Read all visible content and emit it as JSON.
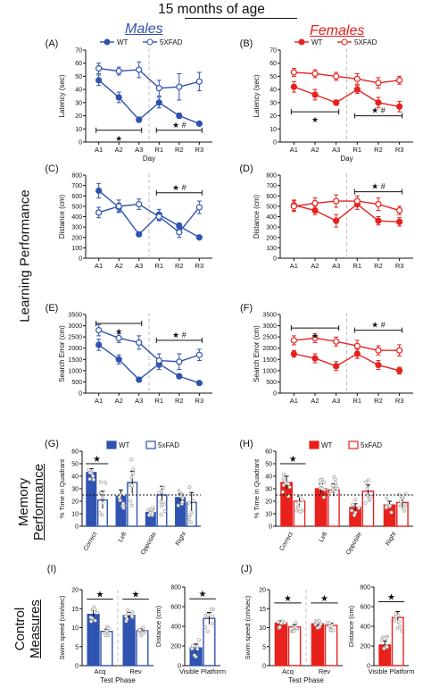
{
  "figure": {
    "title": "15 months of age",
    "males_label": "Males",
    "females_label": "Females",
    "side_labels": {
      "learning": "Learning Performance",
      "memory": [
        "Memory",
        "Performance"
      ],
      "control": [
        "Control",
        "Measures"
      ]
    }
  },
  "colors": {
    "males": "#2f53b0",
    "females": "#e8211d",
    "scatter": "#aaaaaa",
    "divider": "#c0c0c0"
  },
  "chart_data": [
    {
      "id": "A",
      "label": "(A)",
      "type": "line",
      "sex": "males",
      "categories": [
        "A1",
        "A2",
        "A3",
        "R1",
        "R2",
        "R3"
      ],
      "xlabel": "Day",
      "ylabel": "Latency (sec)",
      "ylim": [
        0,
        70
      ],
      "yticks": [
        0,
        10,
        20,
        30,
        40,
        50,
        60,
        70
      ],
      "legend": [
        "WT",
        "5XFAD"
      ],
      "series": [
        {
          "name": "WT",
          "values": [
            47,
            34,
            17,
            30,
            20,
            14
          ],
          "err": [
            4,
            4,
            2,
            4,
            2,
            1
          ],
          "filled": true
        },
        {
          "name": "5XFAD",
          "values": [
            56,
            54,
            55,
            41,
            42,
            46
          ],
          "err": [
            4,
            3,
            6,
            6,
            10,
            7
          ],
          "filled": false
        }
      ],
      "annotations": [
        {
          "text": "★",
          "from": "A1",
          "to": "A3",
          "y": 9
        },
        {
          "text": "★ #",
          "from": "R1",
          "to": "R3",
          "y": 9
        }
      ]
    },
    {
      "id": "B",
      "label": "(B)",
      "type": "line",
      "sex": "females",
      "categories": [
        "A1",
        "A2",
        "A3",
        "R1",
        "R2",
        "R3"
      ],
      "xlabel": "Day",
      "ylabel": "Latency (sec)",
      "ylim": [
        0,
        70
      ],
      "yticks": [
        0,
        10,
        20,
        30,
        40,
        50,
        60,
        70
      ],
      "legend": [
        "WT",
        "5XFAD"
      ],
      "series": [
        {
          "name": "WT",
          "values": [
            42,
            36,
            30,
            40,
            30,
            27
          ],
          "err": [
            4,
            4,
            2,
            3,
            4,
            4
          ],
          "filled": true
        },
        {
          "name": "5XFAD",
          "values": [
            53,
            52,
            50,
            48,
            45,
            47
          ],
          "err": [
            3,
            3,
            3,
            4,
            4,
            3
          ],
          "filled": false
        }
      ],
      "annotations": [
        {
          "text": "★",
          "from": "A1",
          "to": "A3",
          "y": 23
        },
        {
          "text": "★ #",
          "from": "R1",
          "to": "R3",
          "y": 20
        }
      ]
    },
    {
      "id": "C",
      "label": "(C)",
      "type": "line",
      "sex": "males",
      "categories": [
        "A1",
        "A2",
        "A3",
        "R1",
        "R2",
        "R3"
      ],
      "xlabel": "",
      "ylabel": "Distance (cm)",
      "ylim": [
        0,
        800
      ],
      "yticks": [
        0,
        100,
        200,
        300,
        400,
        500,
        600,
        700,
        800
      ],
      "series": [
        {
          "name": "WT",
          "values": [
            650,
            490,
            230,
            420,
            310,
            200
          ],
          "err": [
            70,
            40,
            20,
            50,
            30,
            20
          ],
          "filled": true
        },
        {
          "name": "5XFAD",
          "values": [
            440,
            500,
            520,
            400,
            250,
            490
          ],
          "err": [
            50,
            60,
            50,
            40,
            50,
            60
          ],
          "filled": false
        }
      ],
      "annotations": [
        {
          "text": "★ #",
          "from": "R1",
          "to": "R3",
          "y": 630
        }
      ]
    },
    {
      "id": "D",
      "label": "(D)",
      "type": "line",
      "sex": "females",
      "categories": [
        "A1",
        "A2",
        "A3",
        "R1",
        "R2",
        "R3"
      ],
      "xlabel": "",
      "ylabel": "Distance (cm)",
      "ylim": [
        0,
        800
      ],
      "yticks": [
        0,
        100,
        200,
        300,
        400,
        500,
        600,
        700,
        800
      ],
      "series": [
        {
          "name": "WT",
          "values": [
            510,
            460,
            360,
            520,
            360,
            350
          ],
          "err": [
            50,
            40,
            60,
            50,
            40,
            40
          ],
          "filled": true
        },
        {
          "name": "5XFAD",
          "values": [
            500,
            530,
            550,
            550,
            520,
            460
          ],
          "err": [
            50,
            50,
            60,
            50,
            60,
            40
          ],
          "filled": false
        }
      ],
      "annotations": [
        {
          "text": "★ #",
          "from": "R1",
          "to": "R3",
          "y": 640
        }
      ]
    },
    {
      "id": "E",
      "label": "(E)",
      "type": "line",
      "sex": "males",
      "categories": [
        "A1",
        "A2",
        "A3",
        "R1",
        "R2",
        "R3"
      ],
      "xlabel": "",
      "ylabel": "Search Error (cm)",
      "ylim": [
        0,
        3500
      ],
      "yticks": [
        0,
        500,
        1000,
        1500,
        2000,
        2500,
        3000,
        3500
      ],
      "series": [
        {
          "name": "WT",
          "values": [
            2150,
            1500,
            600,
            1300,
            750,
            450
          ],
          "err": [
            250,
            200,
            100,
            250,
            100,
            50
          ],
          "filled": true
        },
        {
          "name": "5XFAD",
          "values": [
            2800,
            2450,
            2250,
            1450,
            1400,
            1700
          ],
          "err": [
            250,
            200,
            300,
            300,
            350,
            250
          ],
          "filled": false
        }
      ],
      "annotations": [
        {
          "text": "★",
          "from": "A1",
          "to": "A3",
          "y": 3100
        },
        {
          "text": "★ #",
          "from": "R1",
          "to": "R3",
          "y": 2350
        }
      ]
    },
    {
      "id": "F",
      "label": "(F)",
      "type": "line",
      "sex": "females",
      "categories": [
        "A1",
        "A2",
        "A3",
        "R1",
        "R2",
        "R3"
      ],
      "xlabel": "",
      "ylabel": "Search Error (cm)",
      "ylim": [
        0,
        3500
      ],
      "yticks": [
        0,
        500,
        1000,
        1500,
        2000,
        2500,
        3000,
        3500
      ],
      "series": [
        {
          "name": "WT",
          "values": [
            1750,
            1550,
            1200,
            1750,
            1250,
            1000
          ],
          "err": [
            150,
            200,
            200,
            200,
            200,
            150
          ],
          "filled": true
        },
        {
          "name": "5XFAD",
          "values": [
            2350,
            2450,
            2300,
            2100,
            1900,
            1900
          ],
          "err": [
            200,
            200,
            200,
            250,
            200,
            250
          ],
          "filled": false
        }
      ],
      "annotations": [
        {
          "text": "★",
          "from": "A1",
          "to": "A3",
          "y": 2900
        },
        {
          "text": "★ #",
          "from": "R1",
          "to": "R3",
          "y": 2800
        }
      ]
    },
    {
      "id": "G",
      "label": "(G)",
      "type": "bar",
      "sex": "males",
      "categories": [
        "Correct",
        "Left",
        "Opposite",
        "Right"
      ],
      "xlabel": "",
      "ylabel": "% Time in Quadrant",
      "ylim": [
        0,
        60
      ],
      "yticks": [
        0,
        10,
        20,
        30,
        40,
        50,
        60
      ],
      "chance_line": 25,
      "legend": [
        "WT",
        "5xFAD"
      ],
      "series": [
        {
          "name": "WT",
          "values": [
            43,
            24,
            11,
            23
          ],
          "err": [
            3,
            5,
            2,
            3
          ],
          "filled": true
        },
        {
          "name": "5xFAD",
          "values": [
            21,
            35,
            25,
            19
          ],
          "err": [
            7,
            9,
            7,
            8
          ],
          "filled": false
        }
      ],
      "annotations": [
        {
          "text": "★",
          "from": "Correct",
          "to": "Correct",
          "y": 50
        }
      ]
    },
    {
      "id": "H",
      "label": "(H)",
      "type": "bar",
      "sex": "females",
      "categories": [
        "Correct",
        "Left",
        "Opposite",
        "Right"
      ],
      "xlabel": "",
      "ylabel": "% Time in Quadrant",
      "ylim": [
        0,
        60
      ],
      "yticks": [
        0,
        10,
        20,
        30,
        40,
        50,
        60
      ],
      "chance_line": 25,
      "legend": [
        "WT",
        "5xFAD"
      ],
      "series": [
        {
          "name": "WT",
          "values": [
            35,
            30,
            15,
            17
          ],
          "err": [
            5,
            4,
            3,
            3
          ],
          "filled": true
        },
        {
          "name": "5xFAD",
          "values": [
            20,
            29,
            28,
            19
          ],
          "err": [
            4,
            5,
            5,
            4
          ],
          "filled": false
        }
      ],
      "annotations": [
        {
          "text": "★",
          "from": "Correct",
          "to": "Correct",
          "y": 50
        }
      ]
    },
    {
      "id": "I",
      "label": "(I)",
      "type": "bar",
      "sex": "males",
      "panels": [
        {
          "categories": [
            "Acq",
            "Rev"
          ],
          "xlabel": "Test Phase",
          "ylabel": "Swim speed (cm/sec)",
          "ylim": [
            0,
            20
          ],
          "yticks": [
            0,
            5,
            10,
            15,
            20
          ],
          "series": [
            {
              "name": "WT",
              "values": [
                13.5,
                13.2
              ],
              "err": [
                1.0,
                0.8
              ],
              "filled": true
            },
            {
              "name": "5xFAD",
              "values": [
                9.0,
                9.2
              ],
              "err": [
                0.6,
                0.6
              ],
              "filled": false
            }
          ],
          "annotations": [
            {
              "text": "★",
              "from": "Acq",
              "to": "Acq",
              "y": 17.5
            },
            {
              "text": "★",
              "from": "Rev",
              "to": "Rev",
              "y": 17.5
            }
          ]
        },
        {
          "categories": [
            "Visible Platform"
          ],
          "xlabel": "",
          "ylabel": "Distance (cm)",
          "ylim": [
            0,
            800
          ],
          "yticks": [
            0,
            200,
            400,
            600,
            800
          ],
          "series": [
            {
              "name": "WT",
              "values": [
                180
              ],
              "err": [
                40
              ],
              "filled": true
            },
            {
              "name": "5xFAD",
              "values": [
                480
              ],
              "err": [
                60
              ],
              "filled": false
            }
          ],
          "annotations": [
            {
              "text": "★",
              "from": "Visible Platform",
              "to": "Visible Platform",
              "y": 680
            }
          ]
        }
      ]
    },
    {
      "id": "J",
      "label": "(J)",
      "type": "bar",
      "sex": "females",
      "panels": [
        {
          "categories": [
            "Acq",
            "Rev"
          ],
          "xlabel": "Test Phase",
          "ylabel": "Swim speed (cm/sec)",
          "ylim": [
            0,
            20
          ],
          "yticks": [
            0,
            5,
            10,
            15,
            20
          ],
          "series": [
            {
              "name": "WT",
              "values": [
                11.2,
                11.0
              ],
              "err": [
                0.6,
                0.6
              ],
              "filled": true
            },
            {
              "name": "5xFAD",
              "values": [
                10.2,
                10.6
              ],
              "err": [
                0.6,
                0.6
              ],
              "filled": false
            }
          ],
          "annotations": [
            {
              "text": "★",
              "from": "Acq",
              "to": "Acq",
              "y": 16.5
            },
            {
              "text": "★",
              "from": "Rev",
              "to": "Rev",
              "y": 16.5
            }
          ]
        },
        {
          "categories": [
            "Visible Platform"
          ],
          "xlabel": "",
          "ylabel": "Distance (cm)",
          "ylim": [
            0,
            800
          ],
          "yticks": [
            0,
            200,
            400,
            600,
            800
          ],
          "series": [
            {
              "name": "WT",
              "values": [
                210
              ],
              "err": [
                40
              ],
              "filled": true
            },
            {
              "name": "5xFAD",
              "values": [
                490
              ],
              "err": [
                60
              ],
              "filled": false
            }
          ],
          "annotations": [
            {
              "text": "★",
              "from": "Visible Platform",
              "to": "Visible Platform",
              "y": 650
            }
          ]
        }
      ]
    }
  ]
}
